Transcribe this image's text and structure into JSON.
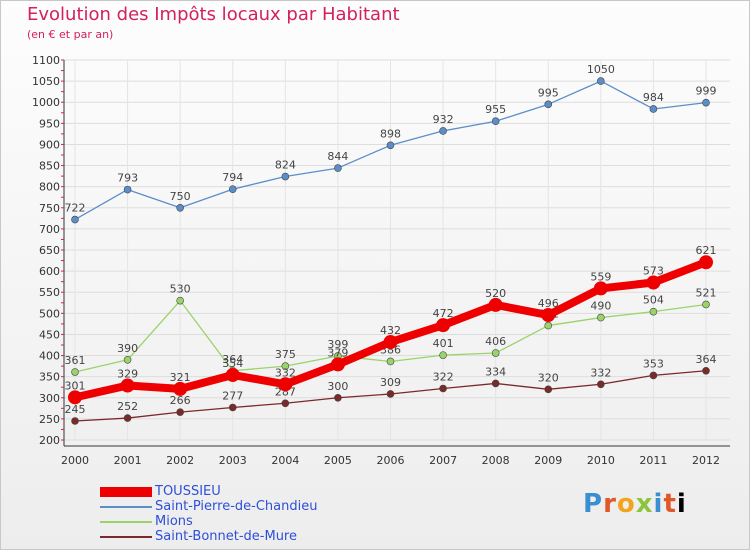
{
  "chart_data": {
    "type": "line",
    "title": "Evolution des Impôts locaux par Habitant",
    "subtitle": "(en € et par an)",
    "x": [
      "2000",
      "2001",
      "2002",
      "2003",
      "2004",
      "2005",
      "2006",
      "2007",
      "2008",
      "2009",
      "2010",
      "2011",
      "2012"
    ],
    "ylim": [
      200,
      1100
    ],
    "yticks": [
      200,
      250,
      300,
      350,
      400,
      450,
      500,
      550,
      600,
      650,
      700,
      750,
      800,
      850,
      900,
      950,
      1000,
      1050,
      1100
    ],
    "grid": true,
    "legend_position": "bottom-left",
    "series": [
      {
        "name": "Saint-Pierre-de-Chandieu",
        "color": "#5b8ec9",
        "values": [
          722,
          793,
          750,
          794,
          824,
          844,
          898,
          932,
          955,
          995,
          1050,
          984,
          999
        ]
      },
      {
        "name": "Mions",
        "color": "#9ad36a",
        "values": [
          361,
          390,
          530,
          364,
          375,
          399,
          386,
          401,
          406,
          471,
          490,
          504,
          521
        ]
      },
      {
        "name": "Saint-Bonnet-de-Mure",
        "color": "#7a2a2a",
        "values": [
          245,
          252,
          266,
          277,
          287,
          300,
          309,
          322,
          334,
          320,
          332,
          353,
          364
        ]
      },
      {
        "name": "TOUSSIEU",
        "color": "#ee0000",
        "values": [
          301,
          329,
          321,
          354,
          332,
          379,
          432,
          472,
          520,
          496,
          559,
          573,
          621
        ]
      }
    ]
  },
  "legend": [
    {
      "name": "TOUSSIEU",
      "color": "#ee0000"
    },
    {
      "name": "Saint-Pierre-de-Chandieu",
      "color": "#5b8ec9"
    },
    {
      "name": "Mions",
      "color": "#9ad36a"
    },
    {
      "name": "Saint-Bonnet-de-Mure",
      "color": "#7a2a2a"
    }
  ],
  "logo": {
    "letters": [
      "P",
      "r",
      "o",
      "x",
      "i",
      "t",
      "i"
    ]
  }
}
